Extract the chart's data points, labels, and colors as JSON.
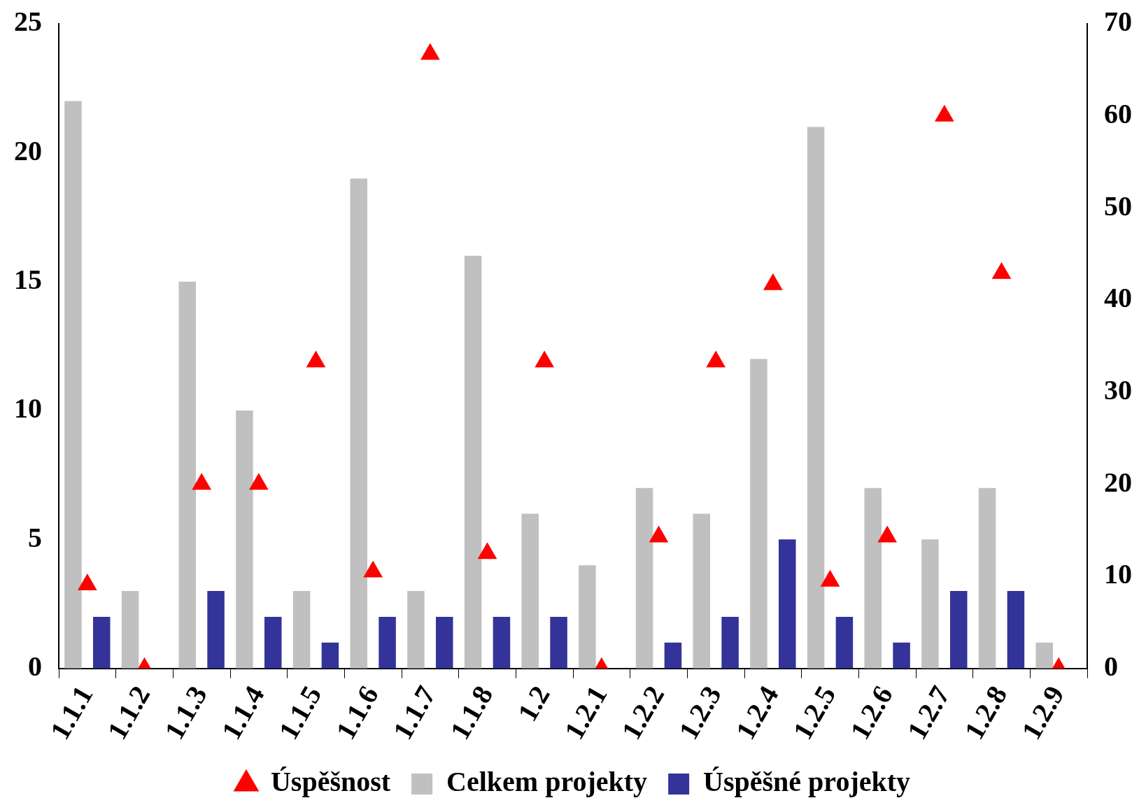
{
  "chart_data": {
    "type": "bar",
    "categories": [
      "1.1.1",
      "1.1.2",
      "1.1.3",
      "1.1.4",
      "1.1.5",
      "1.1.6",
      "1.1.7",
      "1.1.8",
      "1.2",
      "1.2.1",
      "1.2.2",
      "1.2.3",
      "1.2.4",
      "1.2.5",
      "1.2.6",
      "1.2.7",
      "1.2.8",
      "1.2.9"
    ],
    "series": [
      {
        "name": "Celkem projekty",
        "color": "#c0c0c0",
        "values": [
          22,
          3,
          15,
          10,
          3,
          19,
          3,
          16,
          6,
          4,
          7,
          6,
          12,
          21,
          7,
          5,
          7,
          1
        ]
      },
      {
        "name": "Úspěšné projekty",
        "color": "#333399",
        "values": [
          2,
          0,
          3,
          2,
          1,
          2,
          2,
          2,
          2,
          0,
          1,
          2,
          5,
          2,
          1,
          3,
          3,
          0
        ]
      },
      {
        "name": "Úspěšnost",
        "type": "scatter",
        "axis": "y2",
        "marker": "triangle",
        "color": "#ff0000",
        "values": [
          9.1,
          0,
          20,
          20,
          33.3,
          10.5,
          66.7,
          12.5,
          33.3,
          0,
          14.3,
          33.3,
          41.7,
          9.5,
          14.3,
          60,
          42.9,
          0
        ]
      }
    ],
    "ylim": [
      0,
      25
    ],
    "yticks": [
      0,
      5,
      10,
      15,
      20,
      25
    ],
    "y2lim": [
      0,
      70
    ],
    "y2ticks": [
      0,
      10,
      20,
      30,
      40,
      50,
      60,
      70
    ],
    "grid": false,
    "legend": "bottom"
  }
}
